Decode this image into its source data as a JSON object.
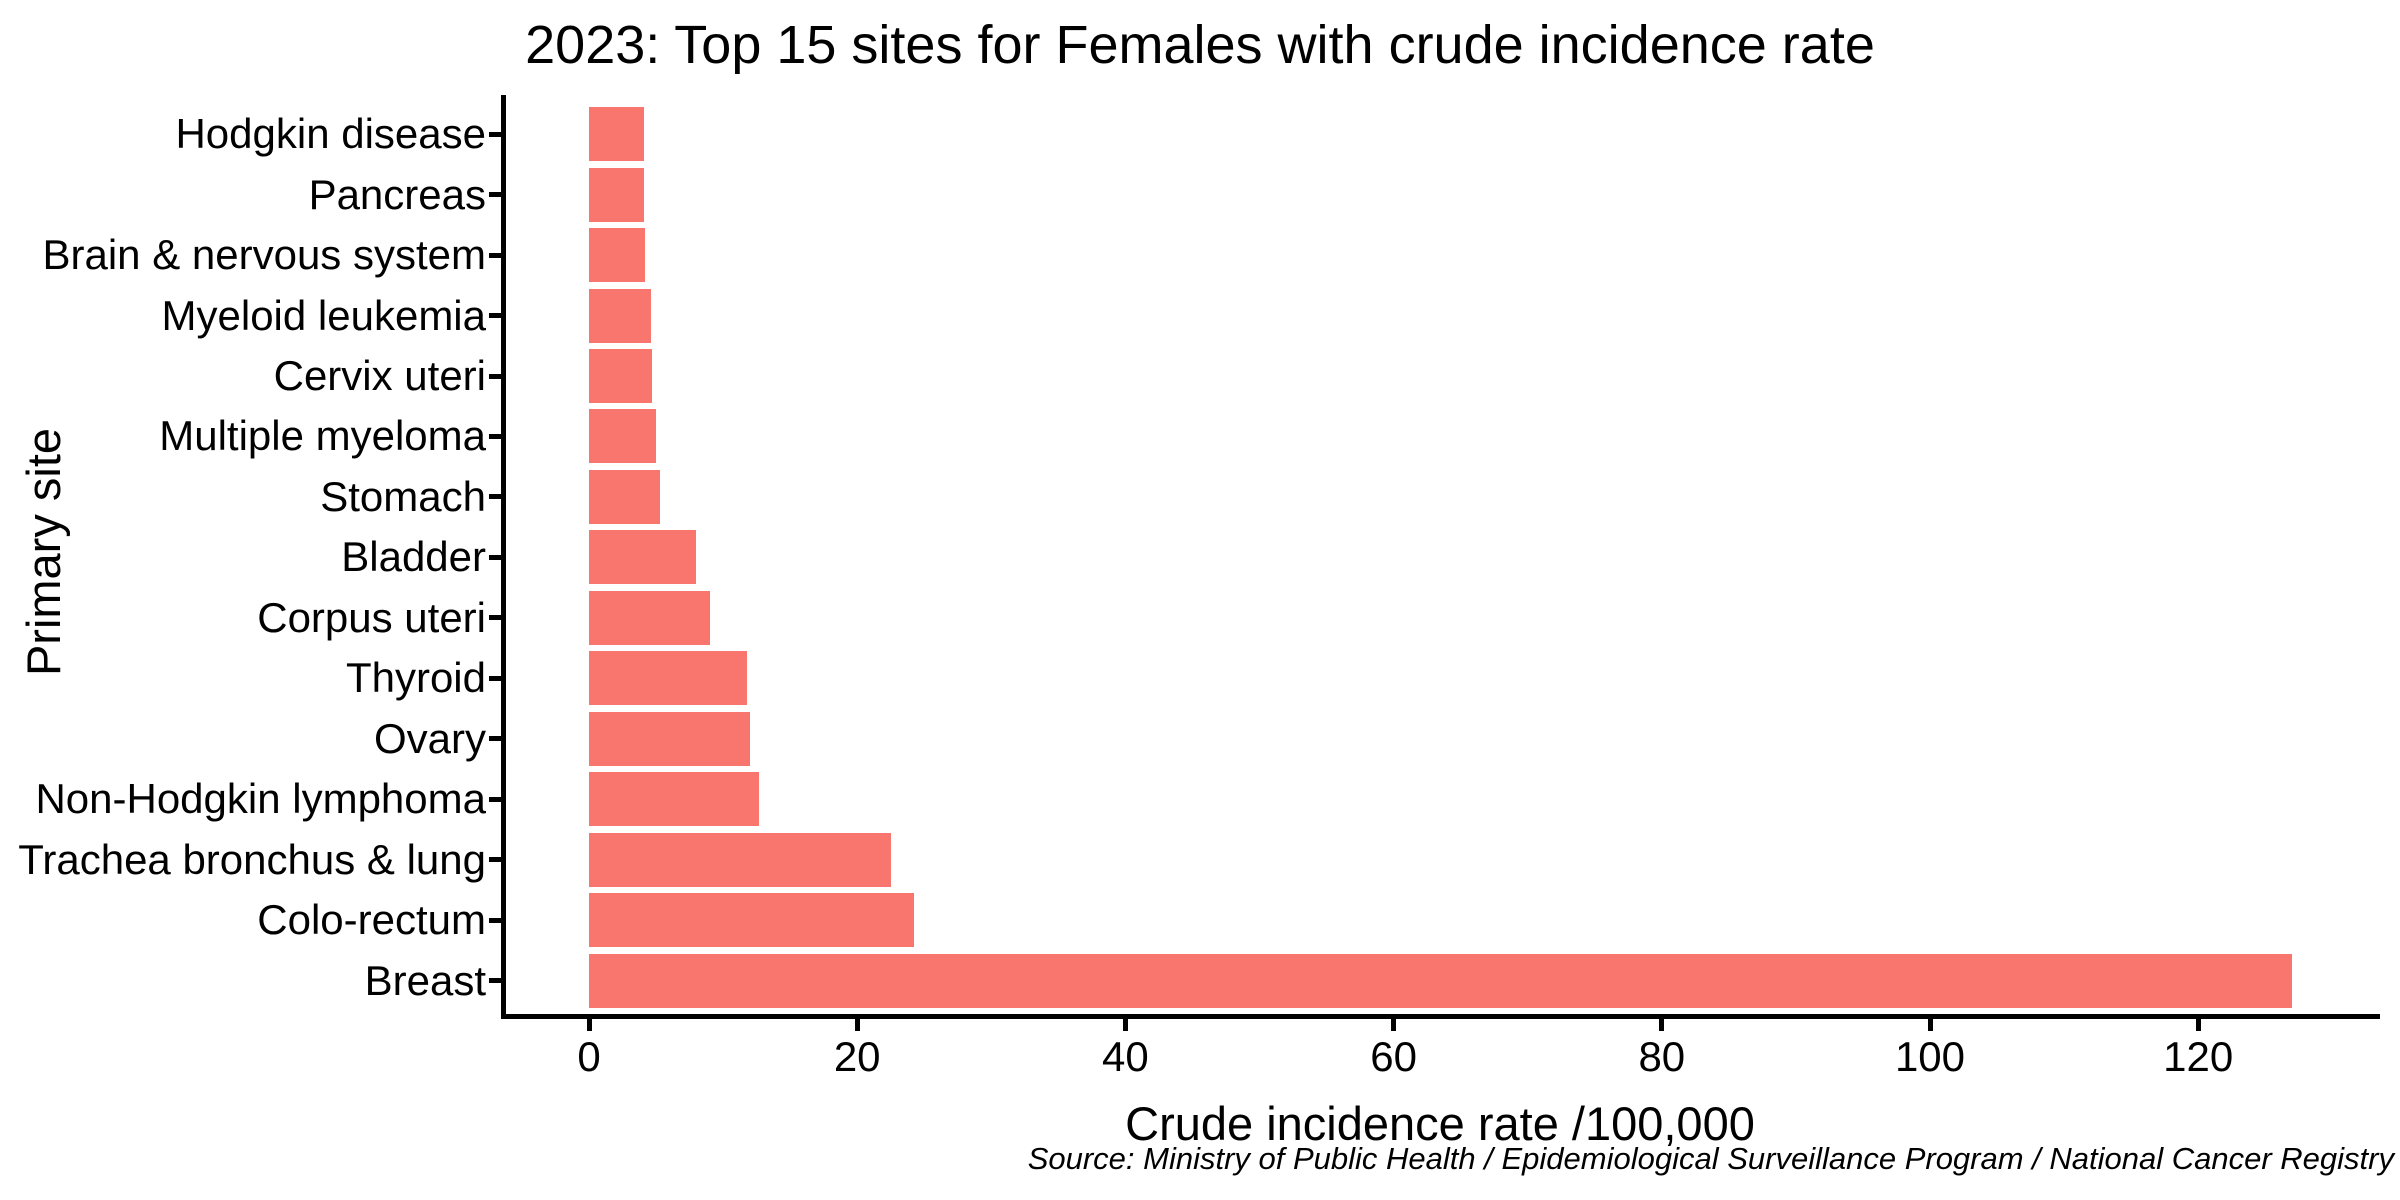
{
  "chart_data": {
    "type": "bar",
    "orientation": "horizontal",
    "title": "2023: Top 15 sites for Females with crude incidence rate",
    "xlabel": "Crude incidence rate /100,000",
    "ylabel": "Primary site",
    "categories": [
      "Hodgkin disease",
      "Pancreas",
      "Brain & nervous system",
      "Myeloid leukemia",
      "Cervix uteri",
      "Multiple myeloma",
      "Stomach",
      "Bladder",
      "Corpus uteri",
      "Thyroid",
      "Ovary",
      "Non-Hodgkin lymphoma",
      "Trachea bronchus & lung",
      "Colo-rectum",
      "Breast"
    ],
    "values": [
      4.1,
      4.1,
      4.2,
      4.6,
      4.7,
      5.0,
      5.3,
      8.0,
      9.0,
      11.8,
      12.0,
      12.7,
      22.5,
      24.2,
      127.0
    ],
    "xticks": [
      0,
      20,
      40,
      60,
      80,
      100,
      120
    ],
    "xlim": [
      -6.4,
      133.4
    ],
    "grid": false,
    "legend": false,
    "bar_color": "#F8766D",
    "axis_color": "#000000",
    "text_color": "#000000",
    "background_color": "#FFFFFF",
    "source": "Source: Ministry of Public Health / Epidemiological Surveillance Program / National Cancer Registry"
  }
}
